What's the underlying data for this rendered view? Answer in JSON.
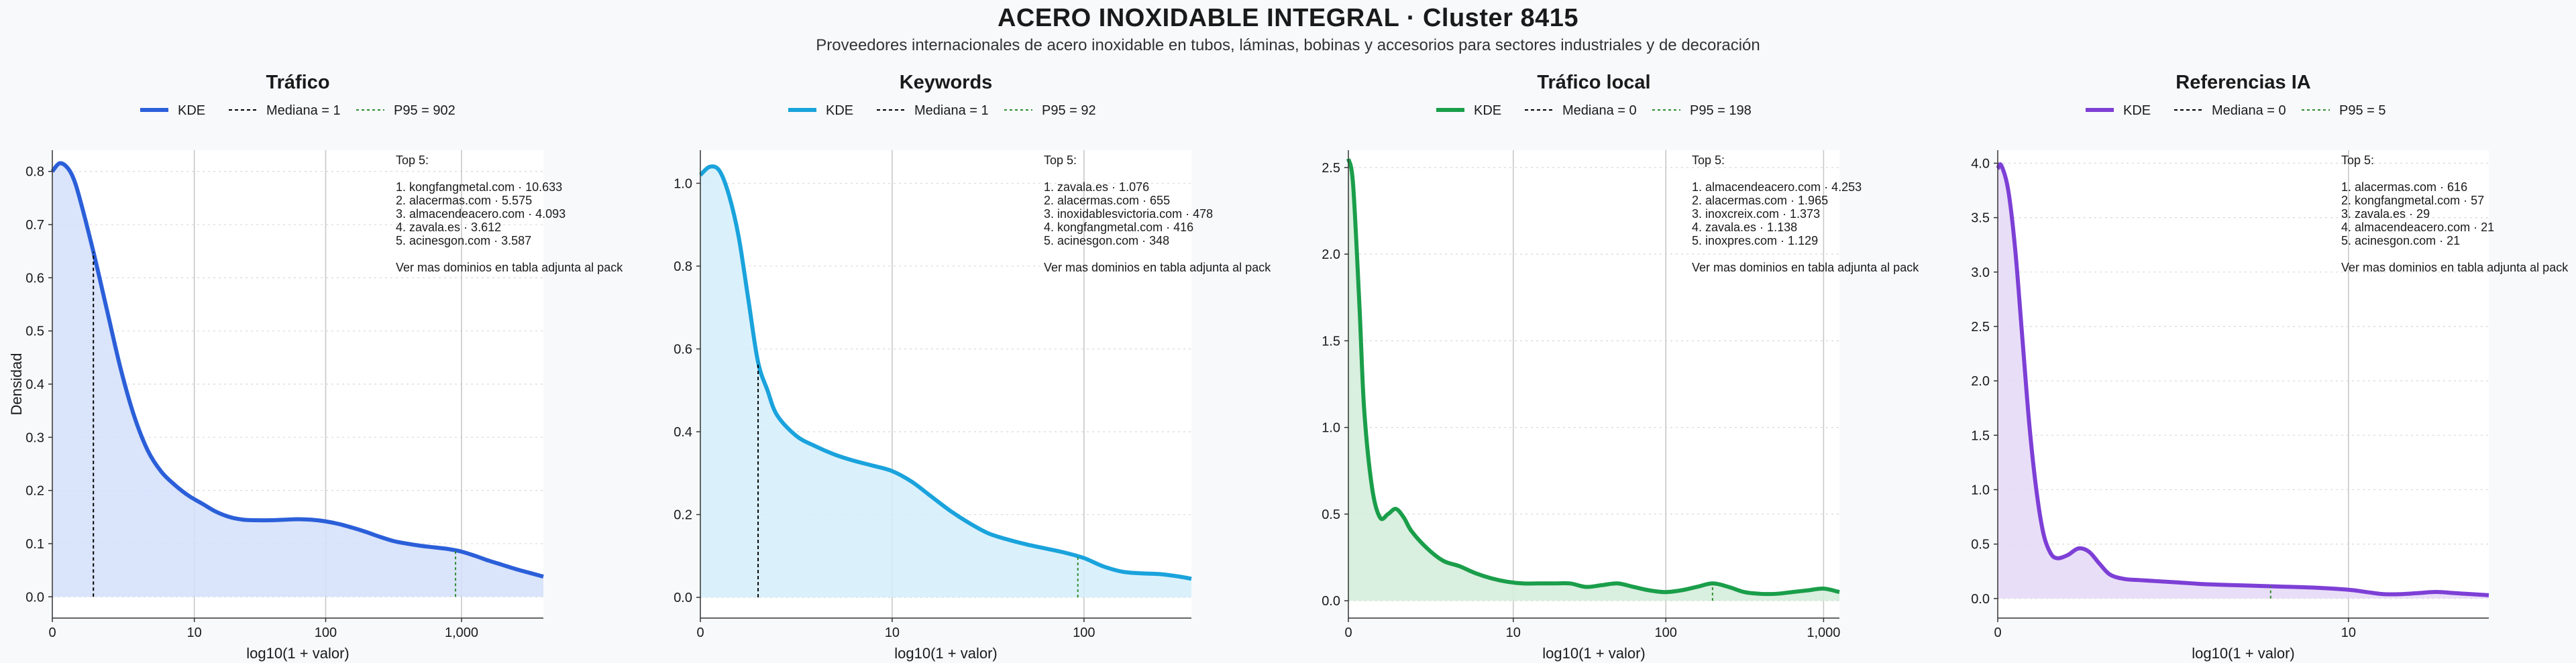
{
  "title": "ACERO INOXIDABLE INTEGRAL · Cluster 8415",
  "subtitle": "Proveedores internacionales de acero inoxidable en tubos, láminas, bobinas y accesorios para sectores industriales y de decoración",
  "colors": {
    "background": "#f7f9fb",
    "median_line": "#000000",
    "p95_line": "#2e8b2e",
    "grid": "#c8c8c8"
  },
  "common": {
    "xlabel": "log10(1 + valor)",
    "ylabel": "Densidad",
    "legend_kde": "KDE",
    "top_header": "Top 5:",
    "footnote": "Ver mas dominios en tabla adjunta al pack"
  },
  "chart_data": [
    {
      "type": "area",
      "title": "Tráfico",
      "color": "#2b5fd9",
      "fill": "#d4dffa",
      "legend_median": "Mediana = 1",
      "legend_p95": "P95 = 902",
      "xlim": [
        0,
        3.6
      ],
      "ylim": [
        -0.04,
        0.84
      ],
      "yticks": [
        0.0,
        0.1,
        0.2,
        0.3,
        0.4,
        0.5,
        0.6,
        0.7,
        0.8
      ],
      "ytick_labels": [
        "0.0",
        "0.1",
        "0.2",
        "0.3",
        "0.4",
        "0.5",
        "0.6",
        "0.7",
        "0.8"
      ],
      "xticks": [
        0,
        1.041,
        2.004,
        3.0
      ],
      "xtick_labels": [
        "0",
        "10",
        "100",
        "1,000"
      ],
      "median_x": 0.301,
      "p95_x": 2.956,
      "x": [
        0,
        0.05,
        0.1,
        0.15,
        0.2,
        0.3,
        0.4,
        0.5,
        0.6,
        0.7,
        0.8,
        0.9,
        1.0,
        1.1,
        1.2,
        1.3,
        1.4,
        1.5,
        1.6,
        1.7,
        1.8,
        1.9,
        2.0,
        2.1,
        2.2,
        2.3,
        2.4,
        2.5,
        2.6,
        2.7,
        2.8,
        2.9,
        3.0,
        3.1,
        3.2,
        3.3,
        3.4,
        3.5,
        3.6
      ],
      "y": [
        0.8,
        0.815,
        0.81,
        0.79,
        0.75,
        0.65,
        0.54,
        0.43,
        0.34,
        0.275,
        0.235,
        0.21,
        0.19,
        0.175,
        0.16,
        0.15,
        0.145,
        0.144,
        0.144,
        0.145,
        0.146,
        0.145,
        0.142,
        0.137,
        0.13,
        0.122,
        0.113,
        0.105,
        0.1,
        0.096,
        0.093,
        0.09,
        0.085,
        0.077,
        0.068,
        0.06,
        0.052,
        0.045,
        0.038
      ],
      "top5": [
        "1. kongfangmetal.com · 10.633",
        "2. alacermas.com · 5.575",
        "3. almacendeacero.com · 4.093",
        "4. zavala.es · 3.612",
        "5. acinesgon.com · 3.587"
      ]
    },
    {
      "type": "area",
      "title": "Keywords",
      "color": "#1aa3dc",
      "fill": "#d3eefb",
      "legend_median": "Mediana = 1",
      "legend_p95": "P95 = 92",
      "xlim": [
        0,
        2.56
      ],
      "ylim": [
        -0.05,
        1.08
      ],
      "yticks": [
        0.0,
        0.2,
        0.4,
        0.6,
        0.8,
        1.0
      ],
      "ytick_labels": [
        "0.0",
        "0.2",
        "0.4",
        "0.6",
        "0.8",
        "1.0"
      ],
      "xticks": [
        0,
        1.0,
        2.0
      ],
      "xtick_labels": [
        "0",
        "10",
        "100"
      ],
      "median_x": 0.301,
      "p95_x": 1.968,
      "x": [
        0,
        0.05,
        0.1,
        0.15,
        0.2,
        0.25,
        0.3,
        0.35,
        0.4,
        0.5,
        0.6,
        0.7,
        0.8,
        0.9,
        1.0,
        1.1,
        1.2,
        1.3,
        1.4,
        1.5,
        1.6,
        1.7,
        1.8,
        1.9,
        2.0,
        2.1,
        2.2,
        2.3,
        2.4,
        2.5,
        2.56
      ],
      "y": [
        1.02,
        1.04,
        1.03,
        0.97,
        0.87,
        0.72,
        0.57,
        0.5,
        0.44,
        0.39,
        0.365,
        0.345,
        0.33,
        0.318,
        0.305,
        0.28,
        0.245,
        0.21,
        0.18,
        0.155,
        0.14,
        0.128,
        0.118,
        0.108,
        0.095,
        0.075,
        0.062,
        0.058,
        0.056,
        0.05,
        0.045
      ],
      "top5": [
        "1. zavala.es · 1.076",
        "2. alacermas.com · 655",
        "3. inoxidablesvictoria.com · 478",
        "4. kongfangmetal.com · 416",
        "5. acinesgon.com · 348"
      ]
    },
    {
      "type": "area",
      "title": "Tráfico local",
      "color": "#1a9e4a",
      "fill": "#d2ecd9",
      "legend_median": "Mediana = 0",
      "legend_p95": "P95 = 198",
      "xlim": [
        0,
        3.1
      ],
      "ylim": [
        -0.1,
        2.6
      ],
      "yticks": [
        0.0,
        0.5,
        1.0,
        1.5,
        2.0,
        2.5
      ],
      "ytick_labels": [
        "0.0",
        "0.5",
        "1.0",
        "1.5",
        "2.0",
        "2.5"
      ],
      "xticks": [
        0,
        1.041,
        2.004,
        3.0
      ],
      "xtick_labels": [
        "0",
        "10",
        "100",
        "1,000"
      ],
      "median_x": 0,
      "p95_x": 2.299,
      "x": [
        0,
        0.03,
        0.07,
        0.1,
        0.15,
        0.2,
        0.25,
        0.3,
        0.35,
        0.4,
        0.5,
        0.6,
        0.7,
        0.8,
        0.9,
        1.0,
        1.1,
        1.2,
        1.3,
        1.4,
        1.5,
        1.6,
        1.7,
        1.8,
        1.9,
        2.0,
        2.1,
        2.2,
        2.3,
        2.4,
        2.5,
        2.6,
        2.7,
        2.8,
        2.9,
        3.0,
        3.1
      ],
      "y": [
        2.55,
        2.4,
        1.7,
        1.1,
        0.65,
        0.48,
        0.5,
        0.53,
        0.48,
        0.4,
        0.3,
        0.23,
        0.2,
        0.16,
        0.13,
        0.11,
        0.1,
        0.1,
        0.1,
        0.1,
        0.08,
        0.09,
        0.1,
        0.08,
        0.06,
        0.05,
        0.06,
        0.08,
        0.1,
        0.08,
        0.05,
        0.04,
        0.04,
        0.05,
        0.06,
        0.07,
        0.05
      ],
      "top5": [
        "1. almacendeacero.com · 4.253",
        "2. alacermas.com · 1.965",
        "3. inoxcreix.com · 1.373",
        "4. zavala.es · 1.138",
        "5. inoxpres.com · 1.129"
      ]
    },
    {
      "type": "area",
      "title": "Referencias IA",
      "color": "#7d3fd6",
      "fill": "#e5d8f6",
      "legend_median": "Mediana = 0",
      "legend_p95": "P95 = 5",
      "xlim": [
        0,
        1.4
      ],
      "ylim": [
        -0.18,
        4.12
      ],
      "yticks": [
        0.0,
        0.5,
        1.0,
        1.5,
        2.0,
        2.5,
        3.0,
        3.5,
        4.0
      ],
      "ytick_labels": [
        "0.0",
        "0.5",
        "1.0",
        "1.5",
        "2.0",
        "2.5",
        "3.0",
        "3.5",
        "4.0"
      ],
      "xticks": [
        0,
        1.0
      ],
      "xtick_labels": [
        "0",
        "10"
      ],
      "median_x": 0,
      "p95_x": 0.778,
      "x": [
        0,
        0.01,
        0.03,
        0.05,
        0.07,
        0.09,
        0.11,
        0.13,
        0.15,
        0.17,
        0.2,
        0.23,
        0.26,
        0.29,
        0.32,
        0.36,
        0.4,
        0.45,
        0.5,
        0.55,
        0.6,
        0.7,
        0.8,
        0.9,
        1.0,
        1.05,
        1.1,
        1.15,
        1.2,
        1.25,
        1.3,
        1.35,
        1.4
      ],
      "y": [
        3.95,
        3.98,
        3.75,
        3.2,
        2.4,
        1.6,
        1.0,
        0.6,
        0.42,
        0.37,
        0.4,
        0.46,
        0.43,
        0.32,
        0.22,
        0.18,
        0.17,
        0.16,
        0.15,
        0.14,
        0.13,
        0.12,
        0.11,
        0.1,
        0.08,
        0.06,
        0.04,
        0.04,
        0.05,
        0.06,
        0.05,
        0.04,
        0.03
      ],
      "top5": [
        "1. alacermas.com · 616",
        "2. kongfangmetal.com · 57",
        "3. zavala.es · 29",
        "4. almacendeacero.com · 21",
        "5. acinesgon.com · 21"
      ]
    }
  ]
}
